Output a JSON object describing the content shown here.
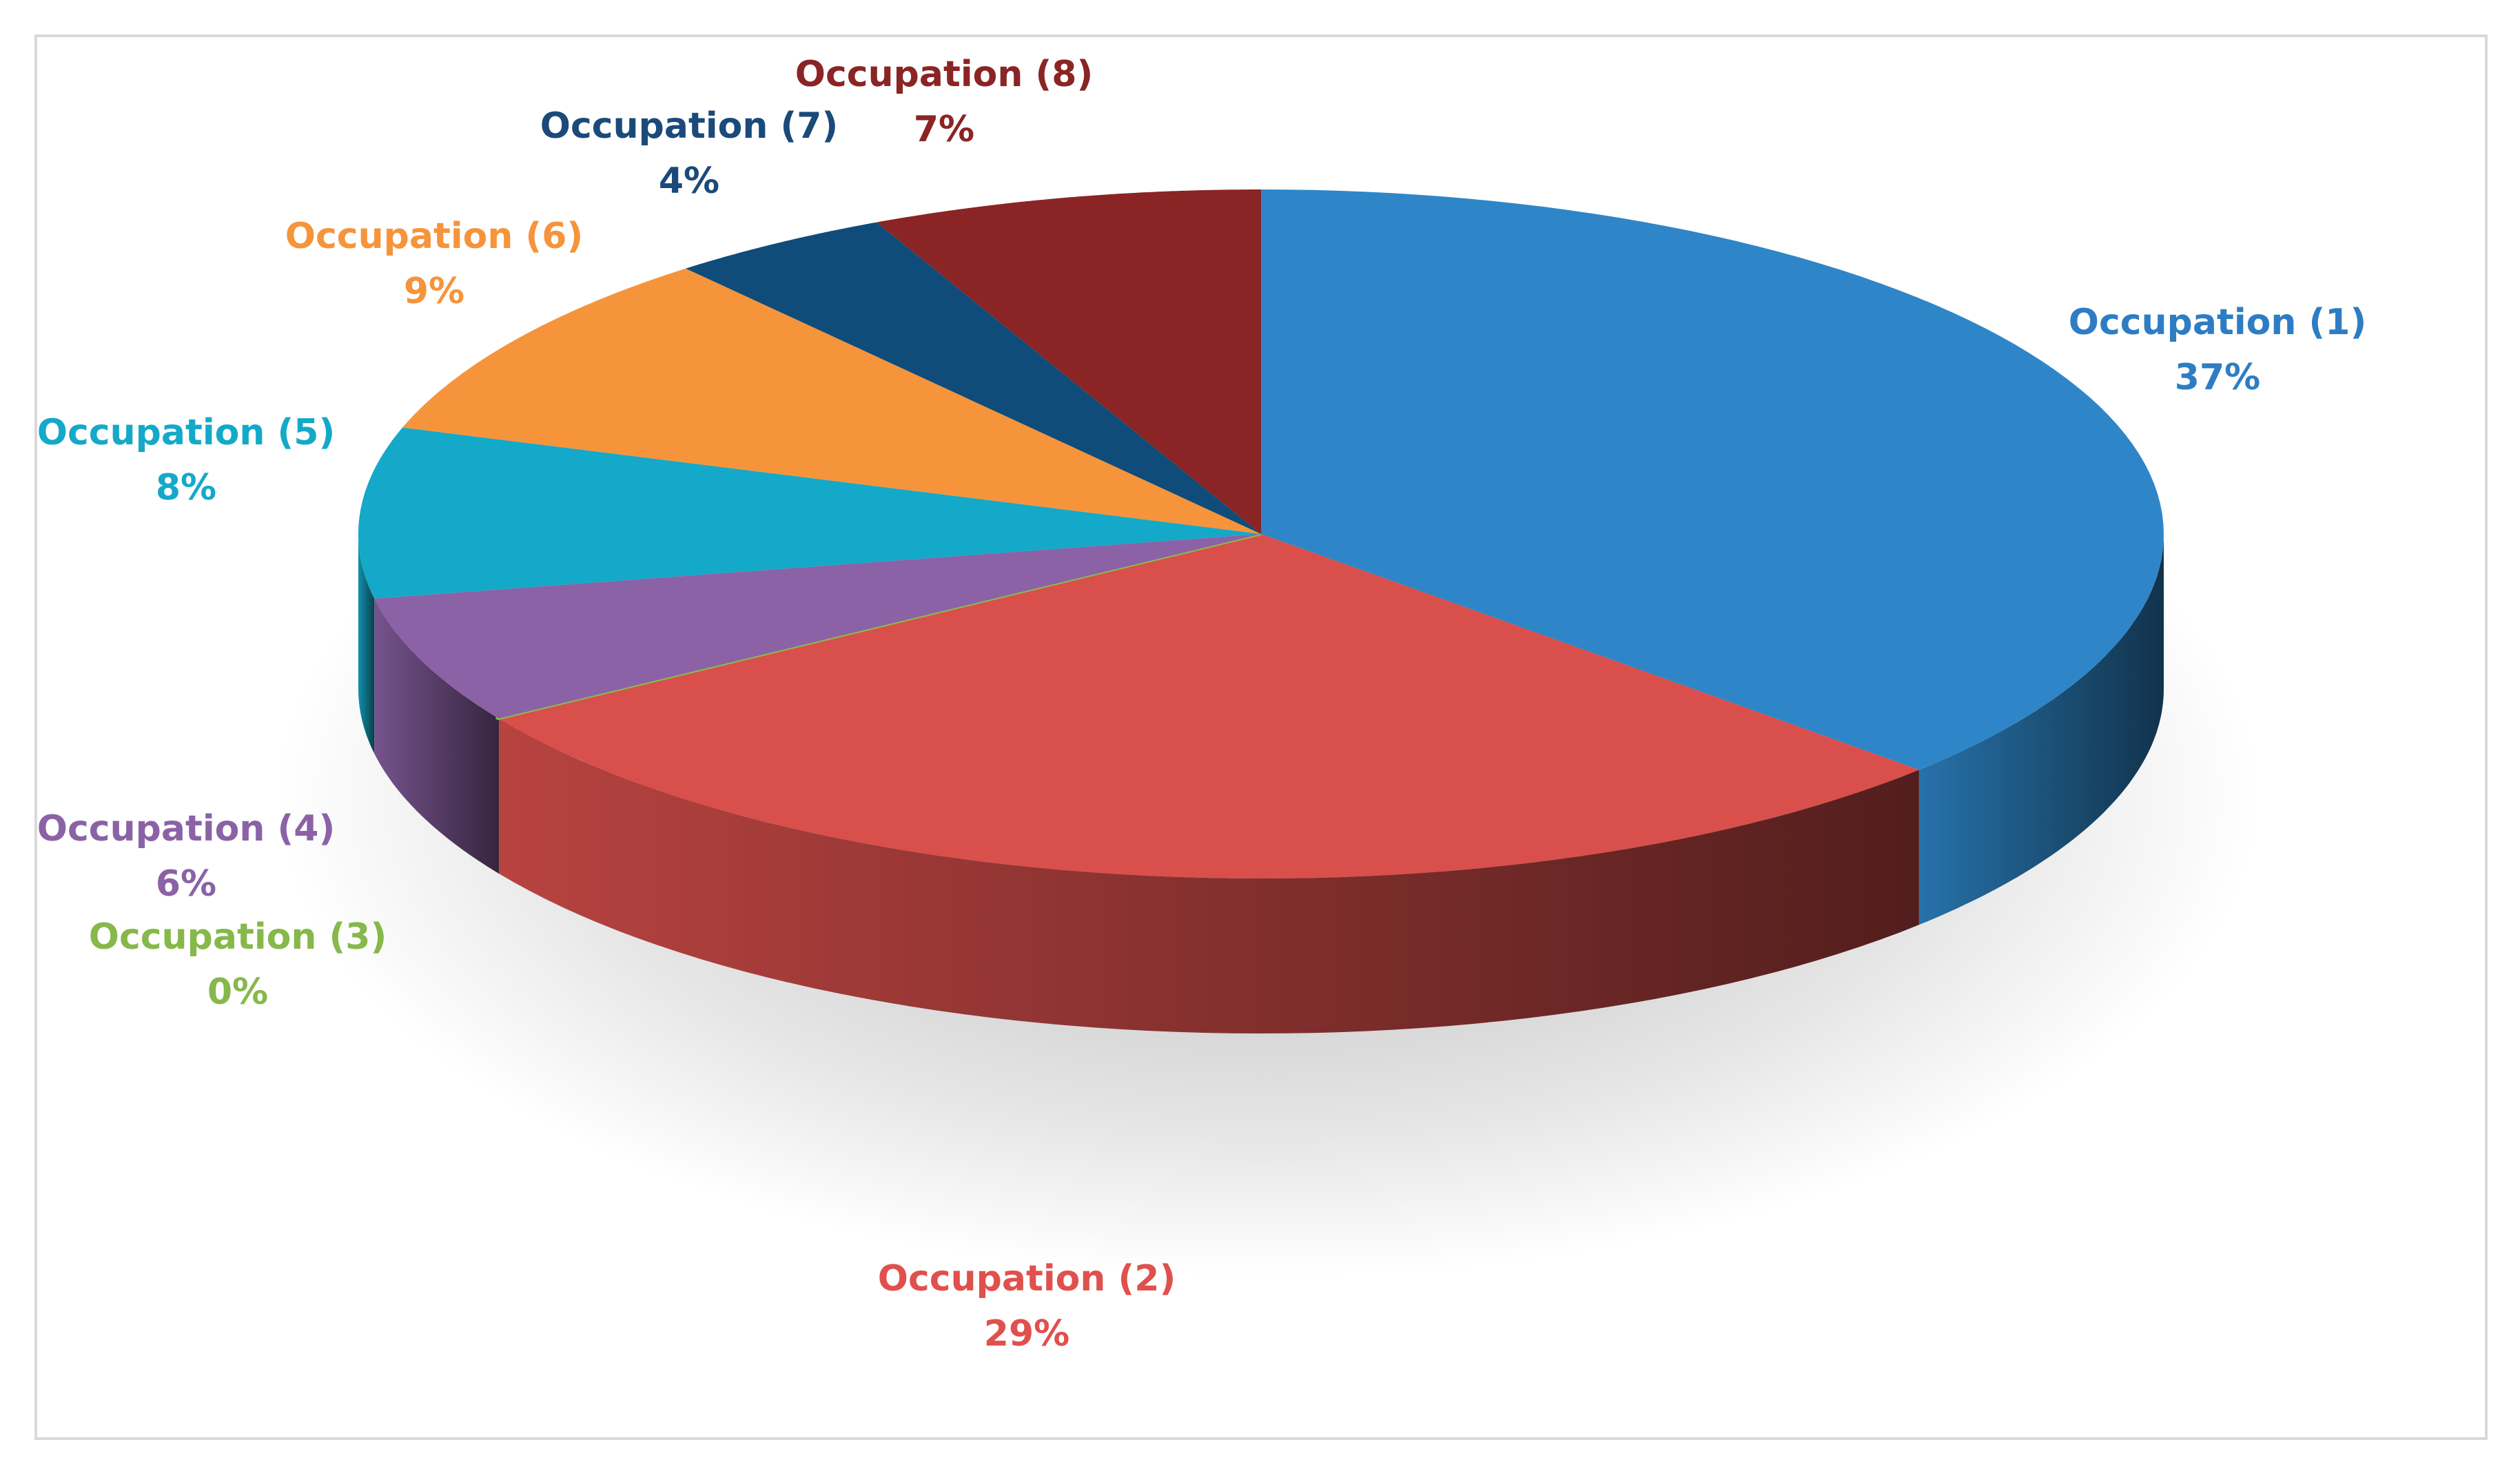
{
  "chart_data": {
    "type": "pie",
    "style": "3d",
    "title": "",
    "slices": [
      {
        "label": "Occupation (1)",
        "value": 37,
        "value_label": "37%",
        "color": "#2E86C8"
      },
      {
        "label": "Occupation (2)",
        "value": 29,
        "value_label": "29%",
        "color": "#D94F4B"
      },
      {
        "label": "Occupation (3)",
        "value": 0,
        "value_label": "0%",
        "color": "#8DBB4E"
      },
      {
        "label": "Occupation (4)",
        "value": 6,
        "value_label": "6%",
        "color": "#8B62A6"
      },
      {
        "label": "Occupation (5)",
        "value": 8,
        "value_label": "8%",
        "color": "#14A9C8"
      },
      {
        "label": "Occupation (6)",
        "value": 9,
        "value_label": "9%",
        "color": "#F6943B"
      },
      {
        "label": "Occupation (7)",
        "value": 4,
        "value_label": "4%",
        "color": "#0F4C7A"
      },
      {
        "label": "Occupation (8)",
        "value": 7,
        "value_label": "7%",
        "color": "#8B2424"
      }
    ],
    "label_colors": [
      "#2E7DC4",
      "#E0504D",
      "#86B84A",
      "#8B62A6",
      "#14A9C8",
      "#F6943B",
      "#1B4A7A",
      "#8B2424"
    ]
  }
}
